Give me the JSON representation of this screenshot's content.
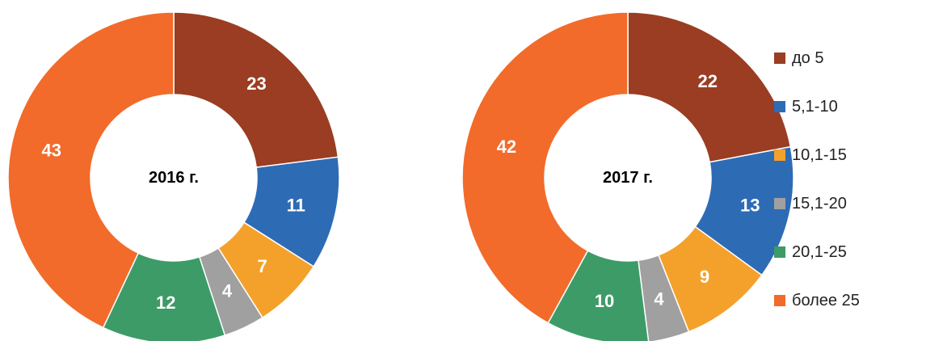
{
  "chart_data": {
    "type": "pie",
    "categories": [
      "до 5",
      "5,1-10",
      "10,1-15",
      "15,1-20",
      "20,1-25",
      "более 25"
    ],
    "colors": [
      "#9a3d22",
      "#2e6bb5",
      "#f4a12c",
      "#a0a0a0",
      "#3d9b67",
      "#f26b2a"
    ],
    "charts": [
      {
        "title": "2016 г.",
        "values": [
          23,
          11,
          7,
          4,
          12,
          43
        ]
      },
      {
        "title": "2017 г.",
        "values": [
          22,
          13,
          9,
          4,
          10,
          42
        ]
      }
    ]
  }
}
